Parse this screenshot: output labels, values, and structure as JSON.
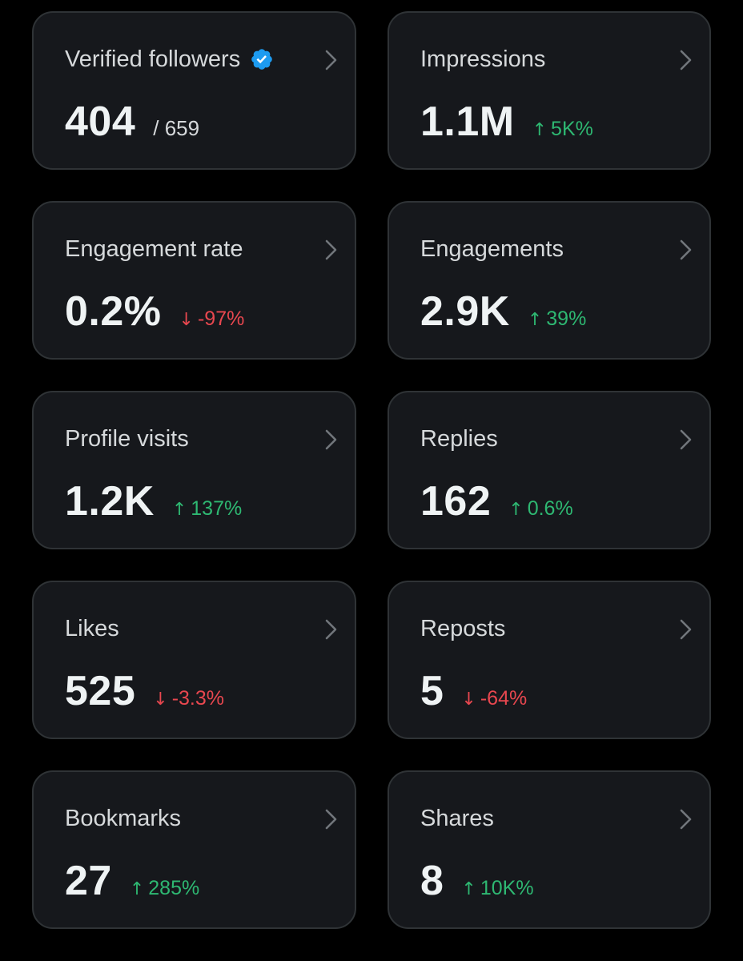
{
  "colors": {
    "background": "#000000",
    "card": "#16181c",
    "card_border": "#2f3336",
    "positive": "#2eb872",
    "negative": "#e8474f",
    "verified_badge": "#1d9bf0"
  },
  "cards": [
    {
      "title": "Verified followers",
      "value": "404",
      "sub_value": "/ 659",
      "icon": "verified-badge-icon"
    },
    {
      "title": "Impressions",
      "value": "1.1M",
      "delta": "5K%",
      "direction": "up"
    },
    {
      "title": "Engagement rate",
      "value": "0.2%",
      "delta": "-97%",
      "direction": "down"
    },
    {
      "title": "Engagements",
      "value": "2.9K",
      "delta": "39%",
      "direction": "up"
    },
    {
      "title": "Profile visits",
      "value": "1.2K",
      "delta": "137%",
      "direction": "up"
    },
    {
      "title": "Replies",
      "value": "162",
      "delta": "0.6%",
      "direction": "up"
    },
    {
      "title": "Likes",
      "value": "525",
      "delta": "-3.3%",
      "direction": "down"
    },
    {
      "title": "Reposts",
      "value": "5",
      "delta": "-64%",
      "direction": "down"
    },
    {
      "title": "Bookmarks",
      "value": "27",
      "delta": "285%",
      "direction": "up"
    },
    {
      "title": "Shares",
      "value": "8",
      "delta": "10K%",
      "direction": "up"
    }
  ]
}
